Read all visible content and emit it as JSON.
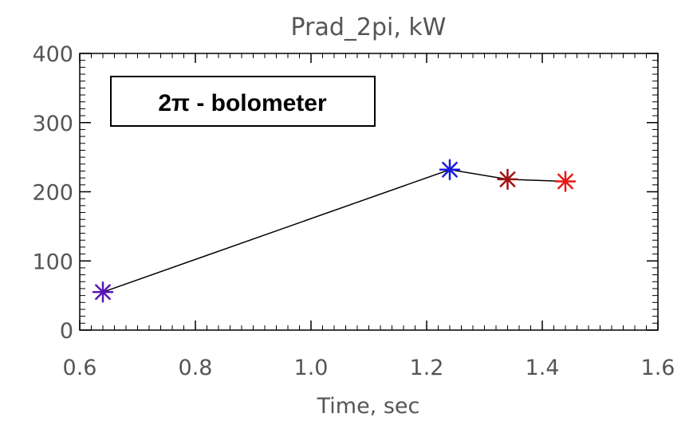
{
  "chart_data": {
    "type": "line",
    "title": "Prad_2pi, kW",
    "xlabel": "Time, sec",
    "ylabel": "",
    "xlim": [
      0.6,
      1.6
    ],
    "ylim": [
      0,
      400
    ],
    "x_ticks": [
      "0.6",
      "0.8",
      "1.0",
      "1.2",
      "1.4",
      "1.6"
    ],
    "y_ticks": [
      "0",
      "100",
      "200",
      "300",
      "400"
    ],
    "grid": false,
    "annotation": "2π - bolometer",
    "series": [
      {
        "x": [
          0.64,
          1.24,
          1.34,
          1.44
        ],
        "y": [
          55,
          232,
          218,
          215
        ],
        "point_colors": [
          "#5a14b4",
          "#1a1adc",
          "#a01010",
          "#e81818"
        ]
      }
    ],
    "line_color": "#000000"
  }
}
